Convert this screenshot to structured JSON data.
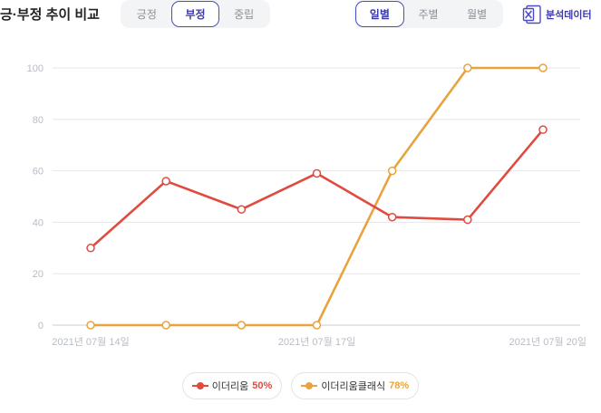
{
  "header": {
    "title": "긍·부정 추이 비교",
    "sentiment_tabs": [
      {
        "label": "긍정",
        "active": false
      },
      {
        "label": "부정",
        "active": true
      },
      {
        "label": "중립",
        "active": false
      }
    ],
    "period_tabs": [
      {
        "label": "일별",
        "active": true
      },
      {
        "label": "주별",
        "active": false
      },
      {
        "label": "월별",
        "active": false
      }
    ],
    "export_label": "분석데이터",
    "export_icon": "excel-x-icon"
  },
  "colors": {
    "accent": "#4b4bc4",
    "series_1": "#e04a3f",
    "series_2": "#e8a33e",
    "grid": "#e6e6e6",
    "axis_text": "#b8bcc4"
  },
  "chart_data": {
    "type": "line",
    "x": [
      "2021-07-14",
      "2021-07-15",
      "2021-07-16",
      "2021-07-17",
      "2021-07-18",
      "2021-07-19",
      "2021-07-20"
    ],
    "x_tick_labels": [
      "2021년 07월 14일",
      "2021년 07월 17일",
      "2021년 07월 20일"
    ],
    "x_tick_indices": [
      0,
      3,
      6
    ],
    "ylim": [
      0,
      100
    ],
    "y_ticks": [
      0,
      20,
      40,
      60,
      80,
      100
    ],
    "grid": true,
    "legend_position": "bottom-center",
    "series": [
      {
        "name": "이더리움",
        "legend_value": "50%",
        "color": "#e04a3f",
        "values": [
          30,
          56,
          45,
          59,
          42,
          41,
          76
        ]
      },
      {
        "name": "이더리움클래식",
        "legend_value": "78%",
        "color": "#e8a33e",
        "values": [
          0,
          0,
          0,
          0,
          60,
          100,
          100
        ]
      }
    ]
  }
}
